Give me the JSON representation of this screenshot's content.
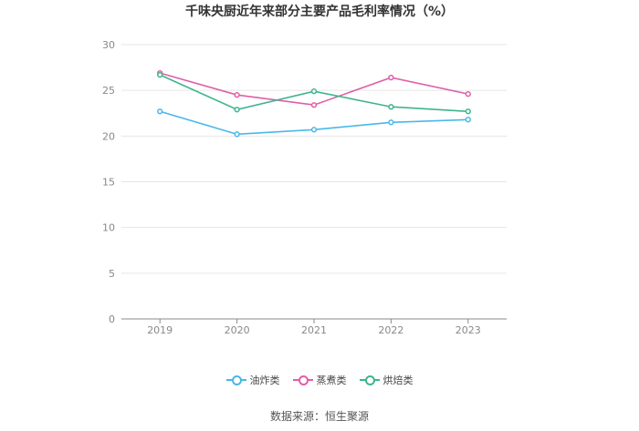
{
  "chart_data": {
    "type": "line",
    "title": "千味央厨近年来部分主要产品毛利率情况（%）",
    "categories": [
      "2019",
      "2020",
      "2021",
      "2022",
      "2023"
    ],
    "ylim": [
      0,
      30
    ],
    "yticks": [
      "0",
      "5",
      "10",
      "15",
      "20",
      "25",
      "30"
    ],
    "grid": true,
    "legend_position": "bottom",
    "series": [
      {
        "name": "油炸类",
        "color": "#4ab7e9",
        "values": [
          22.7,
          20.2,
          20.7,
          21.5,
          21.8
        ]
      },
      {
        "name": "蒸煮类",
        "color": "#e05fa8",
        "values": [
          26.9,
          24.5,
          23.4,
          26.4,
          24.6
        ]
      },
      {
        "name": "烘焙类",
        "color": "#3fb48e",
        "values": [
          26.7,
          22.9,
          24.9,
          23.2,
          22.7
        ]
      }
    ]
  },
  "source": "数据来源：恒生聚源"
}
